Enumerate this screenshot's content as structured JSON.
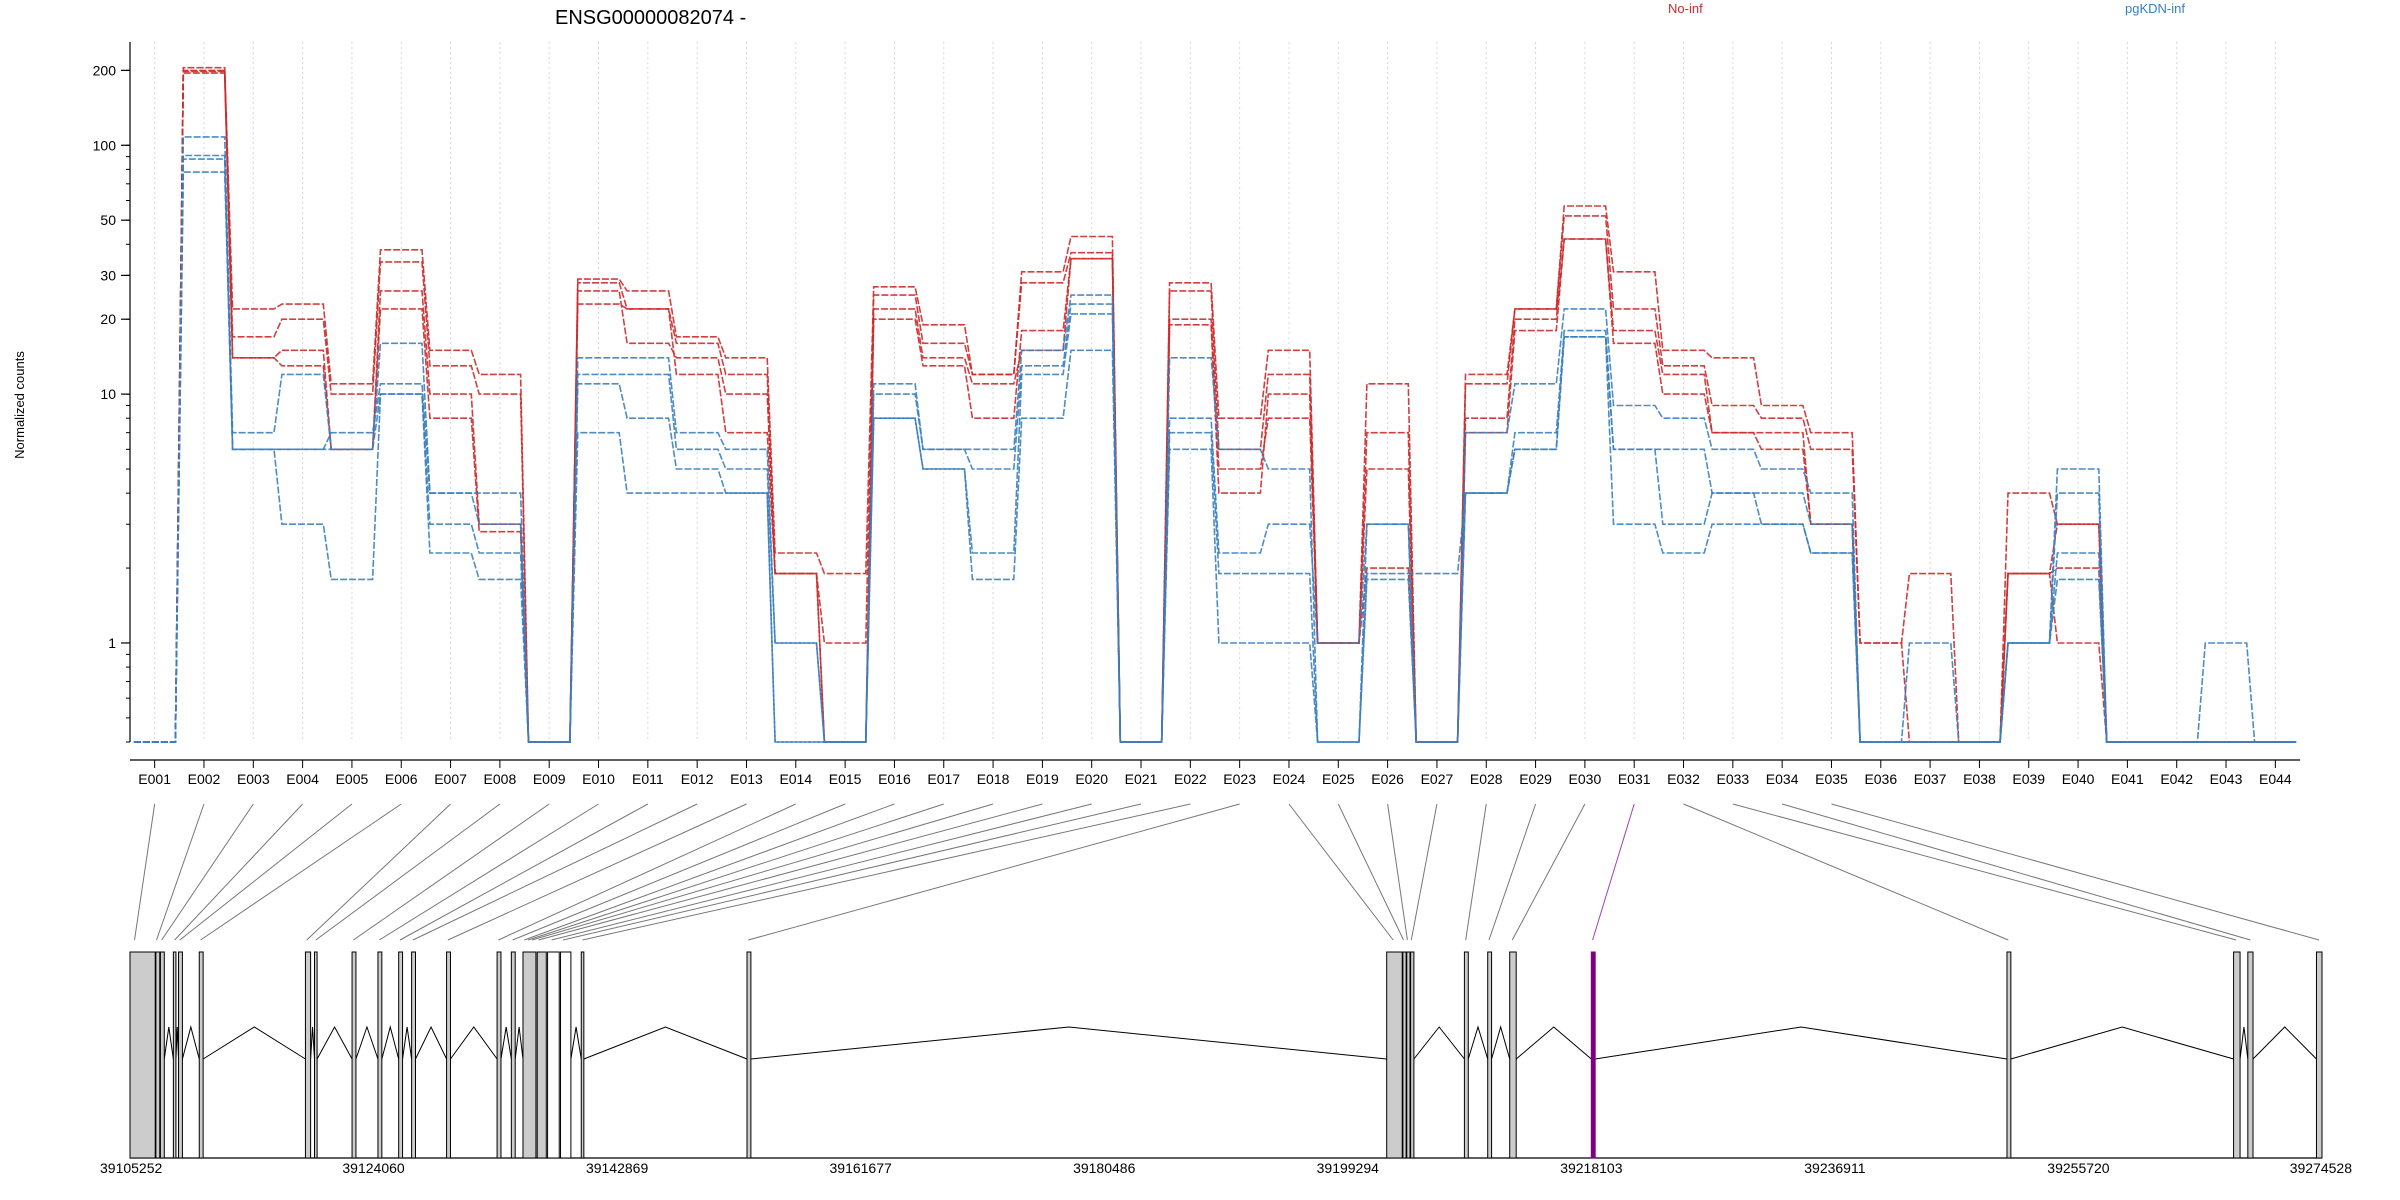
{
  "chart_data": {
    "type": "line",
    "title": "ENSG00000082074 -",
    "ylabel": "Normalized counts",
    "y_scale": "log",
    "ylim": [
      0.4,
      260
    ],
    "y_ticks": [
      1,
      10,
      20,
      30,
      50,
      100,
      200
    ],
    "grid": "vertical-dotted",
    "legend_placement": "top",
    "categories": [
      "E001",
      "E002",
      "E003",
      "E004",
      "E005",
      "E006",
      "E007",
      "E008",
      "E009",
      "E010",
      "E011",
      "E012",
      "E013",
      "E014",
      "E015",
      "E016",
      "E017",
      "E018",
      "E019",
      "E020",
      "E021",
      "E022",
      "E023",
      "E024",
      "E025",
      "E026",
      "E027",
      "E028",
      "E029",
      "E030",
      "E031",
      "E032",
      "E033",
      "E034",
      "E035",
      "E036",
      "E037",
      "E038",
      "E039",
      "E040",
      "E041",
      "E042",
      "E043",
      "E044"
    ],
    "series": [
      {
        "name": "No-inf",
        "color": "#cc2b2b",
        "values": [
          0.4,
          205,
          22,
          23,
          11,
          38,
          15,
          12,
          0.4,
          29,
          26,
          17,
          14,
          2.3,
          1.9,
          27,
          19,
          12,
          31,
          43,
          0.4,
          28,
          8,
          15,
          1,
          11,
          0.4,
          12,
          22,
          57,
          31,
          15,
          14,
          9,
          7,
          1,
          1.9,
          0.4,
          4,
          3,
          0.4,
          0.4,
          0.4,
          0.4
        ]
      },
      {
        "name": "No-inf",
        "color": "#cc2b2b",
        "values": [
          0.4,
          200,
          17,
          20,
          10,
          34,
          13,
          10,
          0.4,
          28,
          22,
          16,
          12,
          1.9,
          1,
          25,
          16,
          12,
          28,
          37,
          0.4,
          26,
          6,
          12,
          1,
          7,
          0.4,
          11,
          22,
          52,
          22,
          13,
          9,
          8,
          6,
          1,
          0.4,
          0.4,
          1.9,
          3,
          0.4,
          0.4,
          0.4,
          0.4
        ]
      },
      {
        "name": "No-inf",
        "color": "#cc2b2b",
        "values": [
          0.4,
          198,
          14,
          13,
          6,
          26,
          10,
          3,
          0.4,
          26,
          16,
          14,
          10,
          1.9,
          0.4,
          20,
          13,
          8,
          18,
          35,
          0.4,
          20,
          5,
          8,
          1,
          5,
          0.4,
          8,
          20,
          42,
          18,
          12,
          7,
          7,
          3,
          0.4,
          0.4,
          0.4,
          1.9,
          2,
          0.4,
          0.4,
          0.4,
          0.4
        ]
      },
      {
        "name": "No-inf",
        "color": "#cc2b2b",
        "values": [
          0.4,
          195,
          14,
          15,
          6,
          22,
          8,
          2.8,
          0.4,
          23,
          22,
          12,
          7,
          1.9,
          0.4,
          22,
          14,
          11,
          15,
          35,
          0.4,
          19,
          4,
          10,
          1,
          2,
          0.4,
          7,
          18,
          42,
          16,
          10,
          7,
          6,
          3,
          0.4,
          0.4,
          0.4,
          1.9,
          1,
          0.4,
          0.4,
          0.4,
          0.4
        ]
      },
      {
        "name": "pgKDN-inf",
        "color": "#3a7fbf",
        "values": [
          0.4,
          108,
          7,
          12,
          6,
          16,
          4,
          4,
          0.4,
          14,
          14,
          7,
          6,
          1,
          0.4,
          11,
          6,
          6,
          15,
          25,
          0.4,
          14,
          6,
          5,
          0.4,
          3,
          0.4,
          7,
          11,
          22,
          9,
          8,
          6,
          5,
          4,
          0.4,
          1,
          0.4,
          1,
          5,
          0.4,
          0.4,
          1,
          0.4
        ]
      },
      {
        "name": "pgKDN-inf",
        "color": "#3a7fbf",
        "values": [
          0.4,
          91,
          6,
          6,
          7,
          11,
          4,
          3,
          0.4,
          12,
          12,
          6,
          5,
          1,
          0.4,
          10,
          6,
          5,
          13,
          23,
          0.4,
          8,
          2.3,
          3,
          1,
          3,
          0.4,
          4,
          7,
          18,
          6,
          6,
          4,
          4,
          3,
          0.4,
          0.4,
          0.4,
          1,
          4,
          0.4,
          0.4,
          0.4,
          0.4
        ]
      },
      {
        "name": "pgKDN-inf",
        "color": "#3a7fbf",
        "values": [
          0.4,
          88,
          6,
          3,
          1.8,
          10,
          3,
          2.3,
          0.4,
          11,
          8,
          5,
          4,
          0.4,
          0.4,
          8,
          5,
          2.3,
          12,
          21,
          0.4,
          7,
          1.9,
          1.9,
          0.4,
          1.9,
          1.9,
          4,
          6,
          17,
          6,
          3,
          4,
          3,
          2.3,
          0.4,
          0.4,
          0.4,
          1,
          2.3,
          0.4,
          0.4,
          0.4,
          0.4
        ]
      },
      {
        "name": "pgKDN-inf",
        "color": "#3a7fbf",
        "values": [
          0.4,
          78,
          6,
          6,
          6,
          10,
          2.3,
          1.8,
          0.4,
          7,
          4,
          4,
          4,
          0.4,
          0.4,
          8,
          5,
          1.8,
          8,
          15,
          0.4,
          6,
          1,
          1,
          0.4,
          1.8,
          0.4,
          4,
          6,
          17,
          3,
          2.3,
          3,
          3,
          2.3,
          0.4,
          0.4,
          0.4,
          1,
          1.8,
          0.4,
          0.4,
          0.4,
          0.4
        ]
      }
    ],
    "legend": [
      {
        "label": "No-inf",
        "color": "#cc2b2b"
      },
      {
        "label": "pgKDN-inf",
        "color": "#3a7fbf"
      }
    ],
    "gene_track": {
      "range": [
        39105252,
        39274528
      ],
      "axis_ticks": [
        39105252,
        39124060,
        39142869,
        39161677,
        39180486,
        39199294,
        39218103,
        39236911,
        39255720,
        39274528
      ],
      "exons": [
        {
          "start": 39105252,
          "end": 39107200,
          "fill": "#cccccc"
        },
        {
          "start": 39107250,
          "end": 39107550,
          "fill": "#cccccc"
        },
        {
          "start": 39107600,
          "end": 39107900,
          "fill": "#cccccc"
        },
        {
          "start": 39108600,
          "end": 39108800,
          "fill": "#cccccc"
        },
        {
          "start": 39109000,
          "end": 39109300,
          "fill": "#cccccc"
        },
        {
          "start": 39110600,
          "end": 39110900,
          "fill": "#cccccc"
        },
        {
          "start": 39118800,
          "end": 39119200,
          "fill": "#cccccc"
        },
        {
          "start": 39119500,
          "end": 39119700,
          "fill": "#cccccc"
        },
        {
          "start": 39122400,
          "end": 39122700,
          "fill": "#cccccc"
        },
        {
          "start": 39124400,
          "end": 39124700,
          "fill": "#cccccc"
        },
        {
          "start": 39126000,
          "end": 39126300,
          "fill": "#cccccc"
        },
        {
          "start": 39127000,
          "end": 39127300,
          "fill": "#cccccc"
        },
        {
          "start": 39129700,
          "end": 39130000,
          "fill": "#cccccc"
        },
        {
          "start": 39133600,
          "end": 39133900,
          "fill": "#cccccc"
        },
        {
          "start": 39134700,
          "end": 39135000,
          "fill": "#cccccc"
        },
        {
          "start": 39135600,
          "end": 39136600,
          "fill": "#cccccc"
        },
        {
          "start": 39136700,
          "end": 39137400,
          "fill": "#cccccc"
        },
        {
          "start": 39137500,
          "end": 39138400,
          "fill": "#ffffff"
        },
        {
          "start": 39138500,
          "end": 39139300,
          "fill": "#ffffff"
        },
        {
          "start": 39140100,
          "end": 39140300,
          "fill": "#cccccc"
        },
        {
          "start": 39152900,
          "end": 39153200,
          "fill": "#cccccc"
        },
        {
          "start": 39202300,
          "end": 39203500,
          "fill": "#cccccc"
        },
        {
          "start": 39203550,
          "end": 39203800,
          "fill": "#cccccc"
        },
        {
          "start": 39203850,
          "end": 39204100,
          "fill": "#cccccc"
        },
        {
          "start": 39204150,
          "end": 39204400,
          "fill": "#cccccc"
        },
        {
          "start": 39208300,
          "end": 39208600,
          "fill": "#cccccc"
        },
        {
          "start": 39210100,
          "end": 39210400,
          "fill": "#cccccc"
        },
        {
          "start": 39211800,
          "end": 39212300,
          "fill": "#cccccc"
        },
        {
          "start": 39218100,
          "end": 39218400,
          "fill": "#800080"
        },
        {
          "start": 39250200,
          "end": 39250500,
          "fill": "#cccccc"
        },
        {
          "start": 39267700,
          "end": 39268200,
          "fill": "#cccccc"
        },
        {
          "start": 39268800,
          "end": 39269200,
          "fill": "#cccccc"
        },
        {
          "start": 39274100,
          "end": 39274528,
          "fill": "#cccccc"
        }
      ],
      "exon_links": [
        39105600,
        39107300,
        39107700,
        39108700,
        39109100,
        39110700,
        39118900,
        39119600,
        39122500,
        39124500,
        39126100,
        39127100,
        39129800,
        39133700,
        39134800,
        39135700,
        39136000,
        39136300,
        39136800,
        39137800,
        39138700,
        39140200,
        39153000,
        39202800,
        39203600,
        39203900,
        39204200,
        39208400,
        39210200,
        39212000,
        39218200,
        39250300,
        39267900,
        39269000,
        39274300
      ],
      "highlight_link_index": 30
    }
  }
}
